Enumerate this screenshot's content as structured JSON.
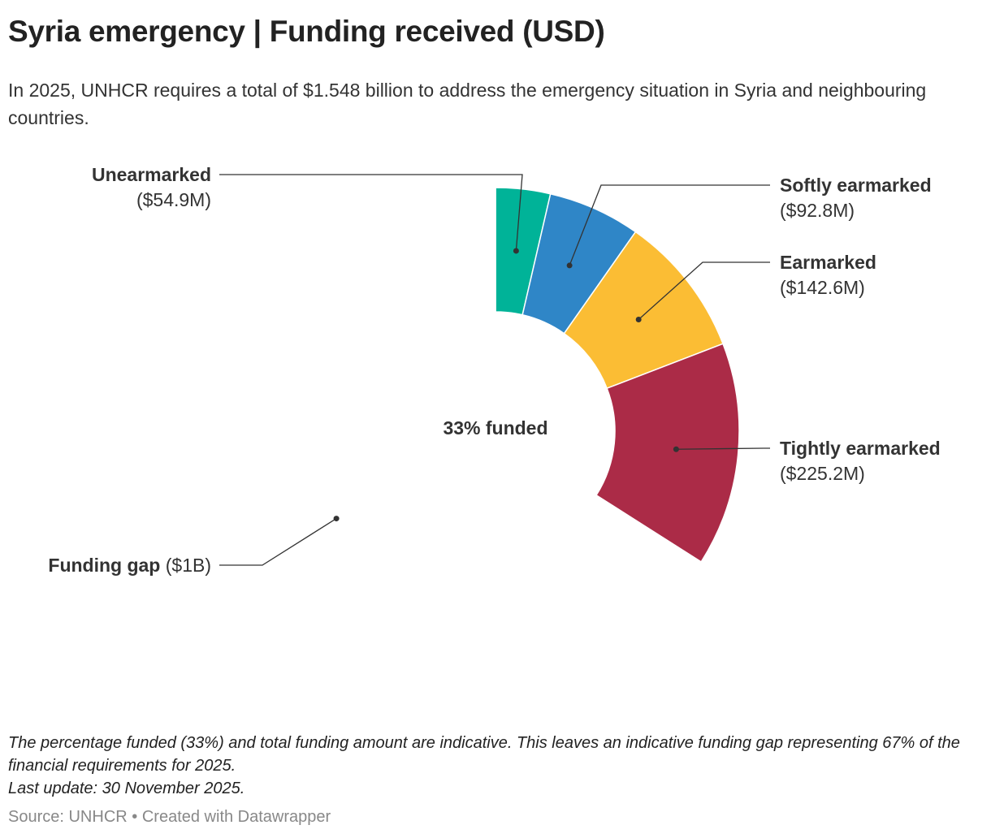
{
  "title": "Syria emergency | Funding received (USD)",
  "subtitle": "In 2025, UNHCR requires a total of $1.548 billion to address the emergency situation in Syria and neighbouring countries.",
  "notes": {
    "line1": "The percentage funded (33%) and total funding amount are indicative. This leaves an indicative funding gap representing 67% of the financial requirements for 2025.",
    "line2": "Last update: 30 November 2025."
  },
  "source": {
    "text": "Source: UNHCR",
    "separator": "•",
    "credit": "Created with Datawrapper"
  },
  "chart_data": {
    "type": "pie",
    "subtype": "donut",
    "title": "Syria emergency | Funding received (USD)",
    "center_label": "33% funded",
    "unit": "USD",
    "total_requirement": "$1.548 billion",
    "slices": [
      {
        "name": "Unearmarked",
        "value_label": "($54.9M)",
        "value": 54.9,
        "color": "#00b398"
      },
      {
        "name": "Softly earmarked",
        "value_label": "($92.8M)",
        "value": 92.8,
        "color": "#2f86c7"
      },
      {
        "name": "Earmarked",
        "value_label": "($142.6M)",
        "value": 142.6,
        "color": "#fbbd34"
      },
      {
        "name": "Tightly earmarked",
        "value_label": "($225.2M)",
        "value": 225.2,
        "color": "#ab2b47"
      },
      {
        "name": "Funding gap",
        "value_label": "($1B)",
        "value": 1000,
        "color": "#ffffff"
      }
    ]
  }
}
